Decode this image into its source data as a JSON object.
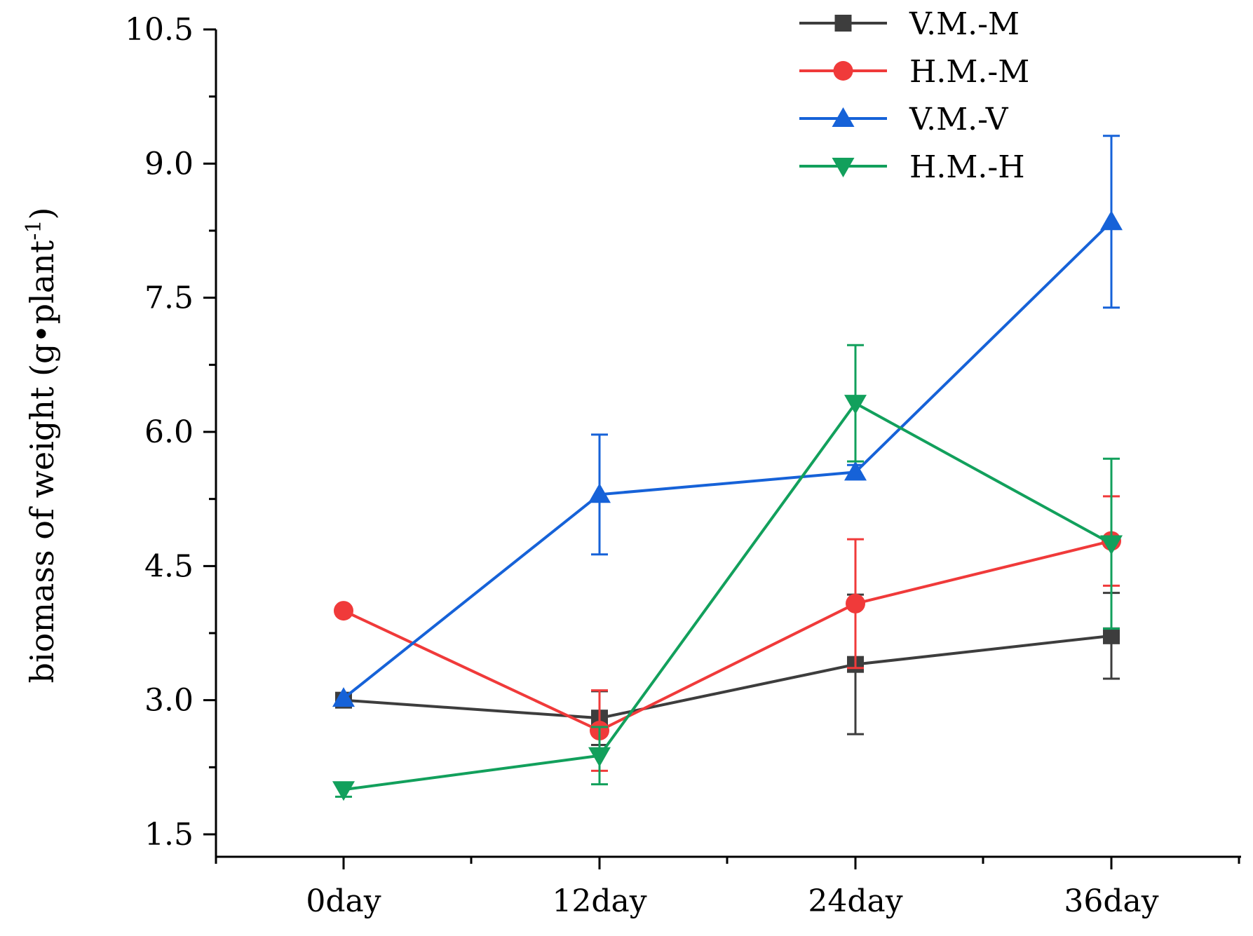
{
  "chart_data": {
    "type": "line",
    "title": "",
    "xlabel": "",
    "ylabel": "biomass of weight (g•plant",
    "ylabel_sup": "-1",
    "ylabel_close": ")",
    "categories": [
      "0day",
      "12day",
      "24day",
      "36day"
    ],
    "y_ticks": [
      "1.5",
      "3.0",
      "4.5",
      "6.0",
      "7.5",
      "9.0",
      "10.5"
    ],
    "ylim": [
      1.5,
      10.5
    ],
    "grid": false,
    "legend_position": "top-right",
    "series": [
      {
        "name": "V.M.-M",
        "color": "#3d3d3d",
        "marker": "square",
        "values": [
          3.0,
          2.8,
          3.4,
          3.72
        ],
        "errors": [
          0.0,
          0.3,
          0.78,
          0.48
        ]
      },
      {
        "name": "H.M.-M",
        "color": "#f03a3a",
        "marker": "circle",
        "values": [
          4.0,
          2.66,
          4.08,
          4.78
        ],
        "errors": [
          0.0,
          0.45,
          0.72,
          0.5
        ]
      },
      {
        "name": "V.M.-V",
        "color": "#1662d8",
        "marker": "triangle-up",
        "values": [
          3.02,
          5.3,
          5.55,
          8.35
        ],
        "errors": [
          0.0,
          0.67,
          0.08,
          0.96
        ]
      },
      {
        "name": "H.M.-H",
        "color": "#12a05c",
        "marker": "triangle-down",
        "values": [
          2.0,
          2.38,
          6.32,
          4.75
        ],
        "errors": [
          0.08,
          0.32,
          0.65,
          0.95
        ]
      }
    ]
  }
}
